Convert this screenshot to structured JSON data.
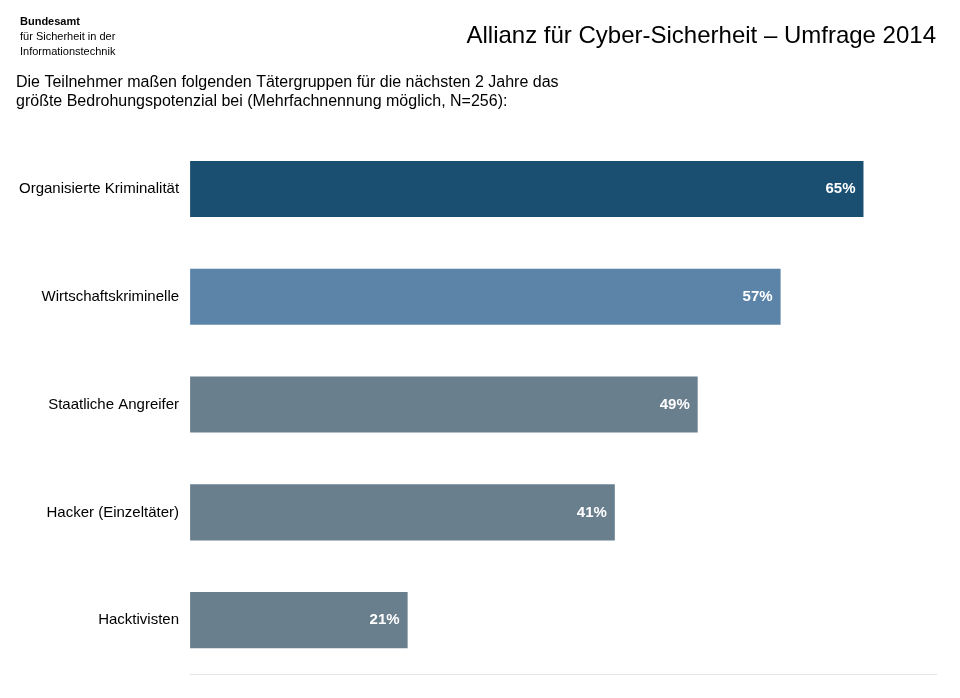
{
  "chart_data": {
    "type": "bar",
    "orientation": "horizontal",
    "title": "Allianz für Cyber-Sicherheit – Umfrage 2014",
    "subtitle": [
      "Die Teilnehmer maßen folgenden Tätergruppen für die nächsten 2 Jahre das",
      "größte Bedrohungspotenzial bei (Mehrfachnennung möglich, N=256):"
    ],
    "annotations": [
      "Bundesamt",
      "für Sicherheit in der",
      "Informationstechnik"
    ],
    "categories": [
      "Organisierte Kriminalität",
      "Wirtschaftskriminelle",
      "Staatliche Angreifer",
      "Hacker (Einzeltäter)",
      "Hacktivisten"
    ],
    "values": [
      65,
      57,
      49,
      41,
      21
    ],
    "value_labels": [
      "65%",
      "57%",
      "49%",
      "41%",
      "21%"
    ],
    "data_labels": true,
    "colors": [
      "#1a4f72",
      "#5b84a8",
      "#6a7f8e",
      "#6a7f8e",
      "#6a7f8e"
    ],
    "xlim": [
      0,
      72
    ],
    "grid": false,
    "tick_labels": "y"
  }
}
